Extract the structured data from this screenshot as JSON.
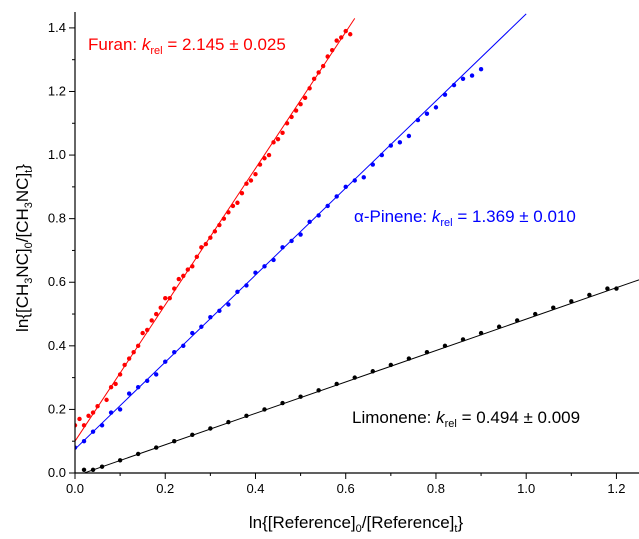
{
  "chart_data": {
    "type": "scatter",
    "xlabel": "ln{[Reference]0/[Reference]t}",
    "ylabel": "ln{[CH3NC]0/[CH3NC]t}",
    "xlim": [
      0,
      1.25
    ],
    "ylim": [
      0,
      1.45
    ],
    "x_ticks": [
      "0.0",
      "0.2",
      "0.4",
      "0.6",
      "0.8",
      "1.0",
      "1.2"
    ],
    "y_ticks": [
      "0.0",
      "0.2",
      "0.4",
      "0.6",
      "0.8",
      "1.0",
      "1.2",
      "1.4"
    ],
    "x_tick_values": [
      0,
      0.2,
      0.4,
      0.6,
      0.8,
      1.0,
      1.2
    ],
    "y_tick_values": [
      0,
      0.2,
      0.4,
      0.6,
      0.8,
      1.0,
      1.2,
      1.4
    ],
    "grid": false,
    "legend": "none",
    "series": [
      {
        "name": "Furan",
        "color": "#ff0000",
        "fit": {
          "slope": 2.145,
          "intercept": 0.1
        },
        "fit_x_range": [
          0,
          0.62
        ],
        "x": [
          0.0,
          0.01,
          0.02,
          0.03,
          0.04,
          0.05,
          0.07,
          0.08,
          0.09,
          0.1,
          0.11,
          0.12,
          0.13,
          0.14,
          0.15,
          0.16,
          0.17,
          0.18,
          0.19,
          0.2,
          0.21,
          0.22,
          0.23,
          0.24,
          0.25,
          0.26,
          0.27,
          0.28,
          0.29,
          0.3,
          0.31,
          0.32,
          0.33,
          0.34,
          0.35,
          0.36,
          0.37,
          0.38,
          0.39,
          0.4,
          0.41,
          0.42,
          0.43,
          0.44,
          0.45,
          0.46,
          0.47,
          0.48,
          0.49,
          0.5,
          0.51,
          0.52,
          0.53,
          0.54,
          0.55,
          0.56,
          0.57,
          0.58,
          0.59,
          0.6,
          0.61
        ],
        "y": [
          0.15,
          0.17,
          0.15,
          0.18,
          0.19,
          0.21,
          0.23,
          0.27,
          0.28,
          0.31,
          0.34,
          0.36,
          0.38,
          0.4,
          0.44,
          0.45,
          0.48,
          0.5,
          0.52,
          0.55,
          0.55,
          0.58,
          0.61,
          0.62,
          0.64,
          0.65,
          0.68,
          0.71,
          0.72,
          0.74,
          0.76,
          0.78,
          0.8,
          0.82,
          0.84,
          0.85,
          0.88,
          0.91,
          0.92,
          0.94,
          0.97,
          0.99,
          1.0,
          1.04,
          1.05,
          1.07,
          1.1,
          1.12,
          1.14,
          1.16,
          1.18,
          1.21,
          1.24,
          1.26,
          1.28,
          1.31,
          1.33,
          1.36,
          1.37,
          1.39,
          1.38
        ]
      },
      {
        "name": "α-Pinene",
        "color": "#0000ff",
        "fit": {
          "slope": 1.369,
          "intercept": 0.075
        },
        "fit_x_range": [
          0,
          1.0
        ],
        "x": [
          0.0,
          0.02,
          0.04,
          0.06,
          0.08,
          0.1,
          0.12,
          0.14,
          0.16,
          0.18,
          0.2,
          0.22,
          0.24,
          0.26,
          0.28,
          0.3,
          0.32,
          0.34,
          0.36,
          0.38,
          0.4,
          0.42,
          0.44,
          0.46,
          0.48,
          0.5,
          0.52,
          0.54,
          0.56,
          0.58,
          0.6,
          0.62,
          0.64,
          0.66,
          0.68,
          0.7,
          0.72,
          0.74,
          0.76,
          0.78,
          0.8,
          0.82,
          0.84,
          0.86,
          0.88,
          0.9
        ],
        "y": [
          0.08,
          0.1,
          0.13,
          0.15,
          0.19,
          0.2,
          0.25,
          0.27,
          0.29,
          0.31,
          0.35,
          0.38,
          0.4,
          0.44,
          0.46,
          0.49,
          0.51,
          0.53,
          0.57,
          0.59,
          0.63,
          0.65,
          0.67,
          0.71,
          0.73,
          0.75,
          0.79,
          0.81,
          0.84,
          0.87,
          0.9,
          0.92,
          0.93,
          0.97,
          1.0,
          1.03,
          1.04,
          1.06,
          1.11,
          1.13,
          1.15,
          1.19,
          1.22,
          1.24,
          1.25,
          1.27
        ]
      },
      {
        "name": "Limonene",
        "color": "#000000",
        "fit": {
          "slope": 0.494,
          "intercept": -0.01
        },
        "fit_x_range": [
          0.02,
          1.25
        ],
        "x": [
          0.02,
          0.04,
          0.06,
          0.1,
          0.14,
          0.18,
          0.22,
          0.26,
          0.3,
          0.34,
          0.38,
          0.42,
          0.46,
          0.5,
          0.54,
          0.58,
          0.62,
          0.66,
          0.7,
          0.74,
          0.78,
          0.82,
          0.86,
          0.9,
          0.94,
          0.98,
          1.02,
          1.06,
          1.1,
          1.14,
          1.18,
          1.2
        ],
        "y": [
          0.01,
          0.01,
          0.02,
          0.04,
          0.06,
          0.08,
          0.1,
          0.12,
          0.14,
          0.16,
          0.18,
          0.2,
          0.22,
          0.24,
          0.26,
          0.28,
          0.3,
          0.32,
          0.34,
          0.36,
          0.38,
          0.4,
          0.42,
          0.44,
          0.46,
          0.48,
          0.5,
          0.52,
          0.54,
          0.56,
          0.58,
          0.58
        ]
      }
    ],
    "annotations": [
      {
        "key": "furan",
        "color": "#ff0000",
        "prefix": "Furan: ",
        "k": "k",
        "sub": "rel",
        "value": " = 2.145 ± 0.025"
      },
      {
        "key": "pinene",
        "color": "#0000ff",
        "prefix": "α-Pinene: ",
        "k": "k",
        "sub": "rel",
        "value": " = 1.369 ± 0.010"
      },
      {
        "key": "limonene",
        "color": "#000000",
        "prefix": "Limonene: ",
        "k": "k",
        "sub": "rel",
        "value": " = 0.494 ± 0.009"
      }
    ]
  }
}
